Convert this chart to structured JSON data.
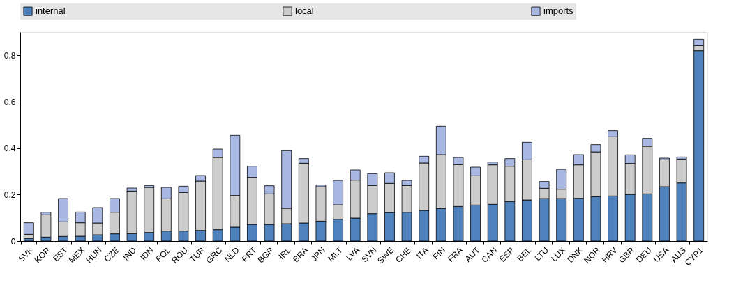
{
  "chart_data": {
    "type": "bar",
    "stacked": true,
    "categories": [
      "SVK",
      "KOR",
      "EST",
      "MEX",
      "HUN",
      "CZE",
      "IND",
      "IDN",
      "POL",
      "ROU",
      "TUR",
      "GRC",
      "NLD",
      "PRT",
      "BGR",
      "IRL",
      "BRA",
      "JPN",
      "MLT",
      "LVA",
      "SVN",
      "SWE",
      "CHE",
      "ITA",
      "FIN",
      "FRA",
      "AUT",
      "CAN",
      "ESP",
      "BEL",
      "LTU",
      "LUX",
      "DNK",
      "NOR",
      "HRV",
      "GBR",
      "DEU",
      "USA",
      "AUS",
      "CYP1"
    ],
    "series": [
      {
        "name": "internal",
        "color": "#4f81bd",
        "values": [
          0.011,
          0.017,
          0.02,
          0.021,
          0.027,
          0.031,
          0.032,
          0.037,
          0.043,
          0.043,
          0.046,
          0.049,
          0.06,
          0.072,
          0.072,
          0.075,
          0.078,
          0.086,
          0.094,
          0.099,
          0.118,
          0.123,
          0.124,
          0.132,
          0.14,
          0.149,
          0.155,
          0.158,
          0.17,
          0.177,
          0.183,
          0.183,
          0.184,
          0.191,
          0.194,
          0.201,
          0.203,
          0.234,
          0.25,
          0.82
        ]
      },
      {
        "name": "local",
        "color": "#cccccc",
        "values": [
          0.018,
          0.096,
          0.063,
          0.058,
          0.051,
          0.093,
          0.183,
          0.194,
          0.139,
          0.166,
          0.212,
          0.311,
          0.136,
          0.202,
          0.131,
          0.066,
          0.257,
          0.148,
          0.062,
          0.163,
          0.121,
          0.125,
          0.115,
          0.204,
          0.232,
          0.18,
          0.126,
          0.17,
          0.152,
          0.173,
          0.044,
          0.04,
          0.144,
          0.193,
          0.255,
          0.133,
          0.205,
          0.116,
          0.103,
          0.022
        ]
      },
      {
        "name": "imports",
        "color": "#a8b8e3",
        "values": [
          0.05,
          0.011,
          0.1,
          0.046,
          0.066,
          0.059,
          0.013,
          0.008,
          0.049,
          0.027,
          0.024,
          0.036,
          0.259,
          0.048,
          0.035,
          0.248,
          0.02,
          0.007,
          0.105,
          0.044,
          0.051,
          0.046,
          0.022,
          0.029,
          0.122,
          0.031,
          0.037,
          0.012,
          0.033,
          0.075,
          0.029,
          0.086,
          0.044,
          0.031,
          0.026,
          0.037,
          0.034,
          0.007,
          0.009,
          0.027
        ]
      }
    ],
    "ylim": [
      0,
      0.9
    ],
    "yticks": [
      0,
      0.2,
      0.4,
      0.6,
      0.8
    ],
    "grid": true,
    "legend": "top"
  }
}
